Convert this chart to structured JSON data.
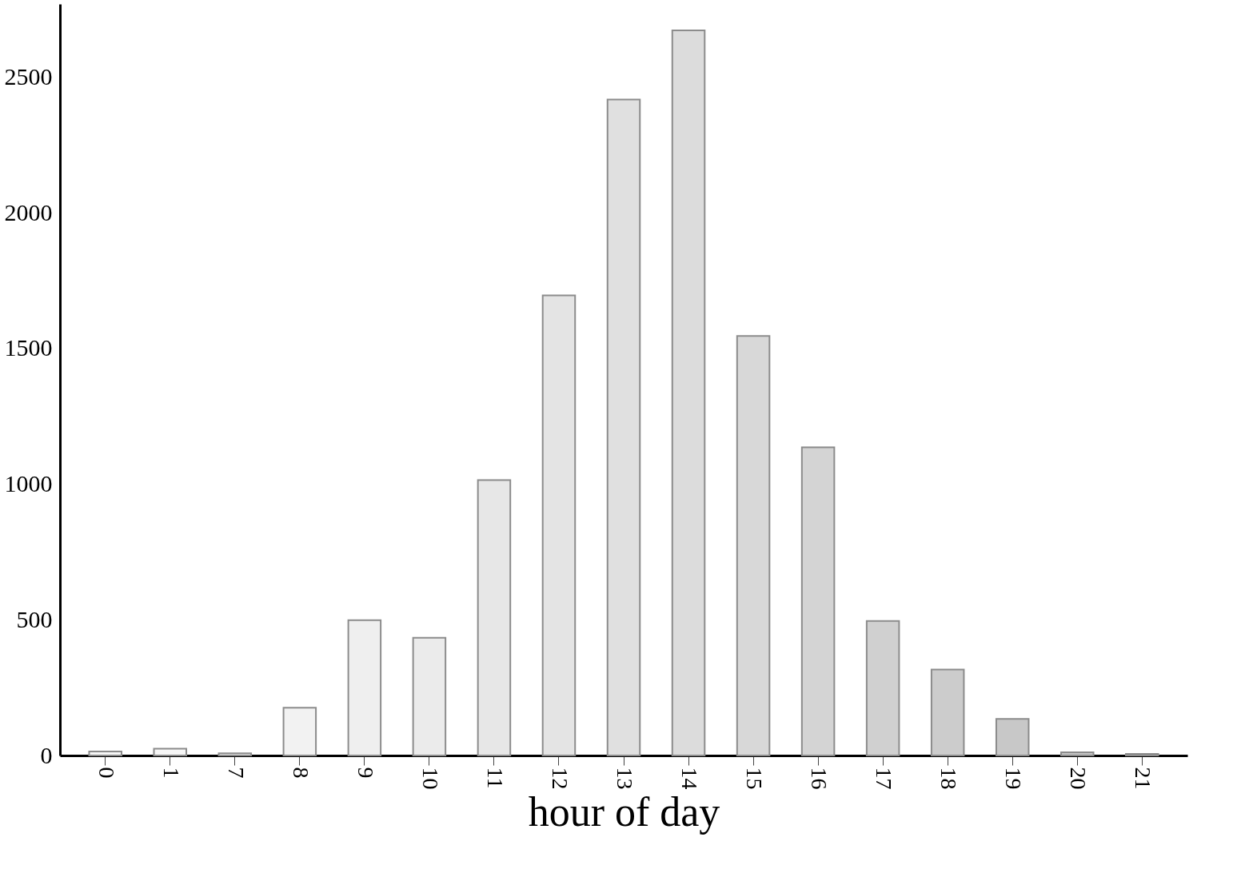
{
  "chart_data": {
    "type": "bar",
    "xlabel": "hour of day",
    "categories": [
      "0",
      "1",
      "7",
      "8",
      "9",
      "10",
      "11",
      "12",
      "13",
      "14",
      "15",
      "16",
      "17",
      "18",
      "19",
      "20",
      "21"
    ],
    "values": [
      15,
      25,
      8,
      176,
      499,
      434,
      1015,
      1696,
      2418,
      2673,
      1546,
      1136,
      496,
      317,
      135,
      12,
      6
    ],
    "colors": [
      "#f7f7f7",
      "#f6f6f6",
      "#f4f4f4",
      "#f2f2f2",
      "#efefef",
      "#ebebeb",
      "#e7e7e7",
      "#e4e4e4",
      "#e0e0e0",
      "#dcdcdc",
      "#d8d8d8",
      "#d4d4d4",
      "#d0d0d0",
      "#cccccc",
      "#c8c8c8",
      "#c5c5c5",
      "#c2c2c2"
    ],
    "ylim": [
      0,
      2770
    ],
    "yticks": [
      0,
      500,
      1000,
      1500,
      2000,
      2500
    ],
    "grid": false,
    "legend": false
  }
}
